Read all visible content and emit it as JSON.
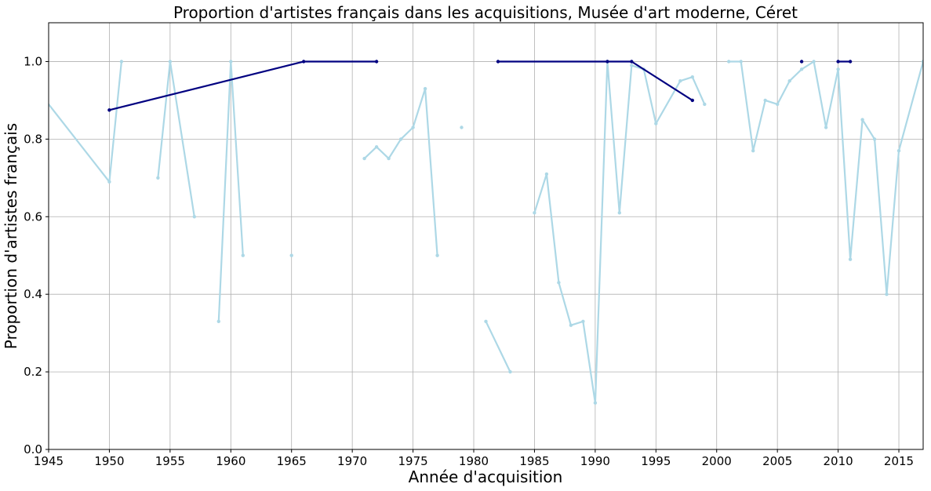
{
  "chart_data": {
    "type": "line",
    "title": "Proportion d'artistes français dans les acquisitions, Musée d'art moderne, Céret",
    "xlabel": "Année d'acquisition",
    "ylabel": "Proportion d'artistes français",
    "xlim": [
      1945,
      2017
    ],
    "ylim": [
      0,
      1.1
    ],
    "xticks": [
      1945,
      1950,
      1955,
      1960,
      1965,
      1970,
      1975,
      1980,
      1985,
      1990,
      1995,
      2000,
      2005,
      2010,
      2015
    ],
    "xtick_labels": [
      "1945",
      "1950",
      "1955",
      "1960",
      "1965",
      "1970",
      "1975",
      "1980",
      "1985",
      "1990",
      "1995",
      "2000",
      "2005",
      "2010",
      "2015"
    ],
    "yticks": [
      0,
      0.2,
      0.4,
      0.6,
      0.8,
      1.0
    ],
    "ytick_labels": [
      "0.0",
      "0.2",
      "0.4",
      "0.6",
      "0.8",
      "1.0"
    ],
    "grid": true,
    "series": [
      {
        "color": "#add8e6",
        "segments": [
          [
            [
              1944,
              0.93
            ],
            [
              1950,
              0.69
            ],
            [
              1951,
              1.0
            ]
          ],
          [
            [
              1954,
              0.7
            ],
            [
              1955,
              1.0
            ],
            [
              1957,
              0.6
            ]
          ],
          [
            [
              1959,
              0.33
            ],
            [
              1960,
              1.0
            ],
            [
              1961,
              0.5
            ]
          ],
          [
            [
              1965,
              0.5
            ]
          ],
          [
            [
              1971,
              0.75
            ],
            [
              1972,
              0.78
            ],
            [
              1973,
              0.75
            ],
            [
              1974,
              0.8
            ],
            [
              1975,
              0.83
            ],
            [
              1976,
              0.93
            ],
            [
              1977,
              0.5
            ]
          ],
          [
            [
              1979,
              0.83
            ]
          ],
          [
            [
              1981,
              0.33
            ],
            [
              1983,
              0.2
            ]
          ],
          [
            [
              1985,
              0.61
            ],
            [
              1986,
              0.71
            ],
            [
              1987,
              0.43
            ],
            [
              1988,
              0.32
            ],
            [
              1989,
              0.33
            ],
            [
              1990,
              0.12
            ],
            [
              1991,
              1.0
            ],
            [
              1992,
              0.61
            ],
            [
              1993,
              0.99
            ],
            [
              1994,
              0.98
            ],
            [
              1995,
              0.84
            ],
            [
              1997,
              0.95
            ],
            [
              1998,
              0.96
            ],
            [
              1999,
              0.89
            ]
          ],
          [
            [
              2001,
              1.0
            ],
            [
              2002,
              1.0
            ],
            [
              2003,
              0.77
            ],
            [
              2004,
              0.9
            ],
            [
              2005,
              0.89
            ],
            [
              2006,
              0.95
            ],
            [
              2007,
              0.98
            ],
            [
              2008,
              1.0
            ],
            [
              2009,
              0.83
            ],
            [
              2010,
              0.98
            ],
            [
              2011,
              0.49
            ],
            [
              2012,
              0.85
            ],
            [
              2013,
              0.8
            ],
            [
              2014,
              0.4
            ],
            [
              2015,
              0.77
            ],
            [
              2017,
              1.0
            ]
          ]
        ]
      },
      {
        "color": "#000080",
        "segments": [
          [
            [
              1950,
              0.875
            ],
            [
              1966,
              1.0
            ],
            [
              1972,
              1.0
            ]
          ],
          [
            [
              1982,
              1.0
            ],
            [
              1991,
              1.0
            ],
            [
              1993,
              1.0
            ],
            [
              1998,
              0.9
            ]
          ],
          [
            [
              2007,
              1.0
            ]
          ],
          [
            [
              2010,
              1.0
            ],
            [
              2011,
              1.0
            ]
          ]
        ]
      }
    ]
  }
}
